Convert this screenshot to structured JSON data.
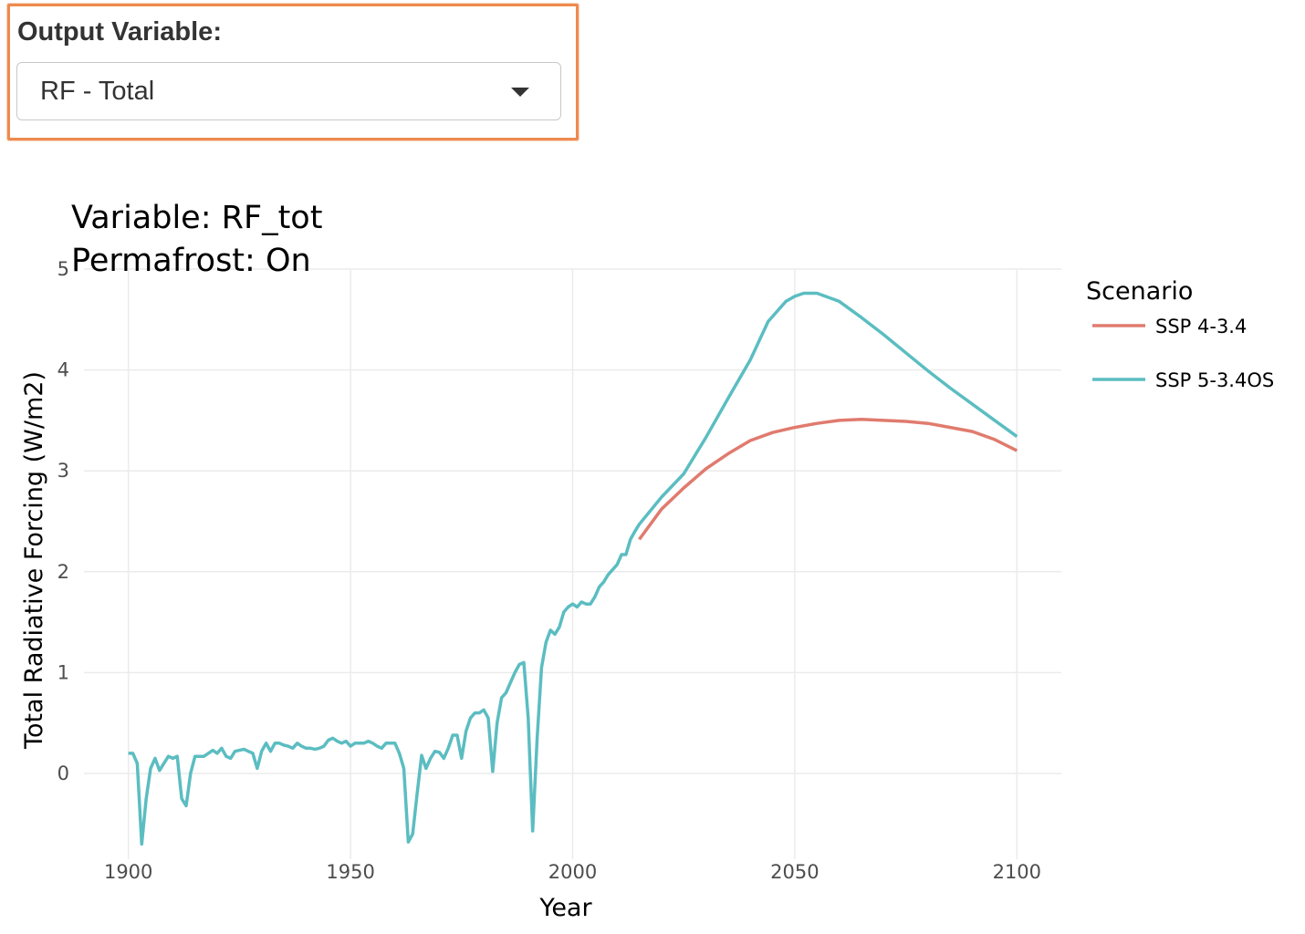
{
  "control": {
    "label": "Output Variable:",
    "selected": "RF - Total",
    "accent_color": "#ee8a4f"
  },
  "chart_data": {
    "type": "line",
    "title_lines": [
      "Variable: RF_tot",
      "Permafrost: On"
    ],
    "xlabel": "Year",
    "ylabel": "Total Radiative Forcing (W/m2)",
    "xlim": [
      1890,
      2110
    ],
    "ylim": [
      -0.85,
      5.0
    ],
    "x_ticks": [
      1900,
      1950,
      2000,
      2050,
      2100
    ],
    "y_ticks": [
      0,
      1,
      2,
      3,
      4,
      5
    ],
    "grid": true,
    "legend": {
      "title": "Scenario",
      "placement": "right"
    },
    "series": [
      {
        "name": "SSP 4-3.4",
        "color": "#e07b6e",
        "points": [
          [
            2015,
            2.32
          ],
          [
            2020,
            2.62
          ],
          [
            2025,
            2.83
          ],
          [
            2030,
            3.02
          ],
          [
            2035,
            3.17
          ],
          [
            2040,
            3.3
          ],
          [
            2045,
            3.38
          ],
          [
            2050,
            3.43
          ],
          [
            2055,
            3.47
          ],
          [
            2060,
            3.5
          ],
          [
            2065,
            3.51
          ],
          [
            2070,
            3.5
          ],
          [
            2075,
            3.49
          ],
          [
            2080,
            3.47
          ],
          [
            2085,
            3.43
          ],
          [
            2090,
            3.39
          ],
          [
            2095,
            3.31
          ],
          [
            2100,
            3.2
          ]
        ]
      },
      {
        "name": "SSP 5-3.4OS",
        "color": "#5bbdc1",
        "points": [
          [
            1900,
            0.2
          ],
          [
            1901,
            0.2
          ],
          [
            1902,
            0.1
          ],
          [
            1903,
            -0.7
          ],
          [
            1904,
            -0.25
          ],
          [
            1905,
            0.05
          ],
          [
            1906,
            0.15
          ],
          [
            1907,
            0.03
          ],
          [
            1908,
            0.1
          ],
          [
            1909,
            0.17
          ],
          [
            1910,
            0.15
          ],
          [
            1911,
            0.17
          ],
          [
            1912,
            -0.25
          ],
          [
            1913,
            -0.32
          ],
          [
            1914,
            0.0
          ],
          [
            1915,
            0.17
          ],
          [
            1916,
            0.17
          ],
          [
            1917,
            0.17
          ],
          [
            1918,
            0.2
          ],
          [
            1919,
            0.23
          ],
          [
            1920,
            0.2
          ],
          [
            1921,
            0.25
          ],
          [
            1922,
            0.17
          ],
          [
            1923,
            0.15
          ],
          [
            1924,
            0.22
          ],
          [
            1925,
            0.23
          ],
          [
            1926,
            0.24
          ],
          [
            1927,
            0.22
          ],
          [
            1928,
            0.2
          ],
          [
            1929,
            0.05
          ],
          [
            1930,
            0.22
          ],
          [
            1931,
            0.3
          ],
          [
            1932,
            0.22
          ],
          [
            1933,
            0.3
          ],
          [
            1934,
            0.3
          ],
          [
            1935,
            0.28
          ],
          [
            1936,
            0.27
          ],
          [
            1937,
            0.25
          ],
          [
            1938,
            0.3
          ],
          [
            1939,
            0.27
          ],
          [
            1940,
            0.25
          ],
          [
            1941,
            0.25
          ],
          [
            1942,
            0.24
          ],
          [
            1943,
            0.25
          ],
          [
            1944,
            0.27
          ],
          [
            1945,
            0.33
          ],
          [
            1946,
            0.35
          ],
          [
            1947,
            0.32
          ],
          [
            1948,
            0.3
          ],
          [
            1949,
            0.32
          ],
          [
            1950,
            0.27
          ],
          [
            1951,
            0.3
          ],
          [
            1952,
            0.3
          ],
          [
            1953,
            0.3
          ],
          [
            1954,
            0.32
          ],
          [
            1955,
            0.3
          ],
          [
            1956,
            0.27
          ],
          [
            1957,
            0.25
          ],
          [
            1958,
            0.3
          ],
          [
            1959,
            0.3
          ],
          [
            1960,
            0.3
          ],
          [
            1961,
            0.2
          ],
          [
            1962,
            0.05
          ],
          [
            1963,
            -0.68
          ],
          [
            1964,
            -0.6
          ],
          [
            1965,
            -0.2
          ],
          [
            1966,
            0.18
          ],
          [
            1967,
            0.05
          ],
          [
            1968,
            0.15
          ],
          [
            1969,
            0.22
          ],
          [
            1970,
            0.21
          ],
          [
            1971,
            0.15
          ],
          [
            1972,
            0.25
          ],
          [
            1973,
            0.38
          ],
          [
            1974,
            0.38
          ],
          [
            1975,
            0.15
          ],
          [
            1976,
            0.42
          ],
          [
            1977,
            0.55
          ],
          [
            1978,
            0.6
          ],
          [
            1979,
            0.6
          ],
          [
            1980,
            0.63
          ],
          [
            1981,
            0.55
          ],
          [
            1982,
            0.02
          ],
          [
            1983,
            0.5
          ],
          [
            1984,
            0.75
          ],
          [
            1985,
            0.8
          ],
          [
            1986,
            0.9
          ],
          [
            1987,
            1.0
          ],
          [
            1988,
            1.08
          ],
          [
            1989,
            1.1
          ],
          [
            1990,
            0.55
          ],
          [
            1991,
            -0.57
          ],
          [
            1992,
            0.35
          ],
          [
            1993,
            1.05
          ],
          [
            1994,
            1.3
          ],
          [
            1995,
            1.42
          ],
          [
            1996,
            1.38
          ],
          [
            1997,
            1.45
          ],
          [
            1998,
            1.6
          ],
          [
            1999,
            1.65
          ],
          [
            2000,
            1.68
          ],
          [
            2001,
            1.65
          ],
          [
            2002,
            1.7
          ],
          [
            2003,
            1.68
          ],
          [
            2004,
            1.68
          ],
          [
            2005,
            1.75
          ],
          [
            2006,
            1.85
          ],
          [
            2007,
            1.9
          ],
          [
            2008,
            1.97
          ],
          [
            2009,
            2.02
          ],
          [
            2010,
            2.07
          ],
          [
            2011,
            2.17
          ],
          [
            2012,
            2.17
          ],
          [
            2013,
            2.32
          ],
          [
            2014,
            2.4
          ],
          [
            2015,
            2.47
          ],
          [
            2020,
            2.74
          ],
          [
            2025,
            2.97
          ],
          [
            2030,
            3.33
          ],
          [
            2035,
            3.72
          ],
          [
            2040,
            4.1
          ],
          [
            2044,
            4.48
          ],
          [
            2048,
            4.68
          ],
          [
            2050,
            4.73
          ],
          [
            2052,
            4.76
          ],
          [
            2055,
            4.76
          ],
          [
            2060,
            4.68
          ],
          [
            2065,
            4.52
          ],
          [
            2070,
            4.35
          ],
          [
            2075,
            4.17
          ],
          [
            2080,
            3.99
          ],
          [
            2085,
            3.82
          ],
          [
            2090,
            3.66
          ],
          [
            2095,
            3.5
          ],
          [
            2100,
            3.34
          ]
        ]
      }
    ]
  }
}
